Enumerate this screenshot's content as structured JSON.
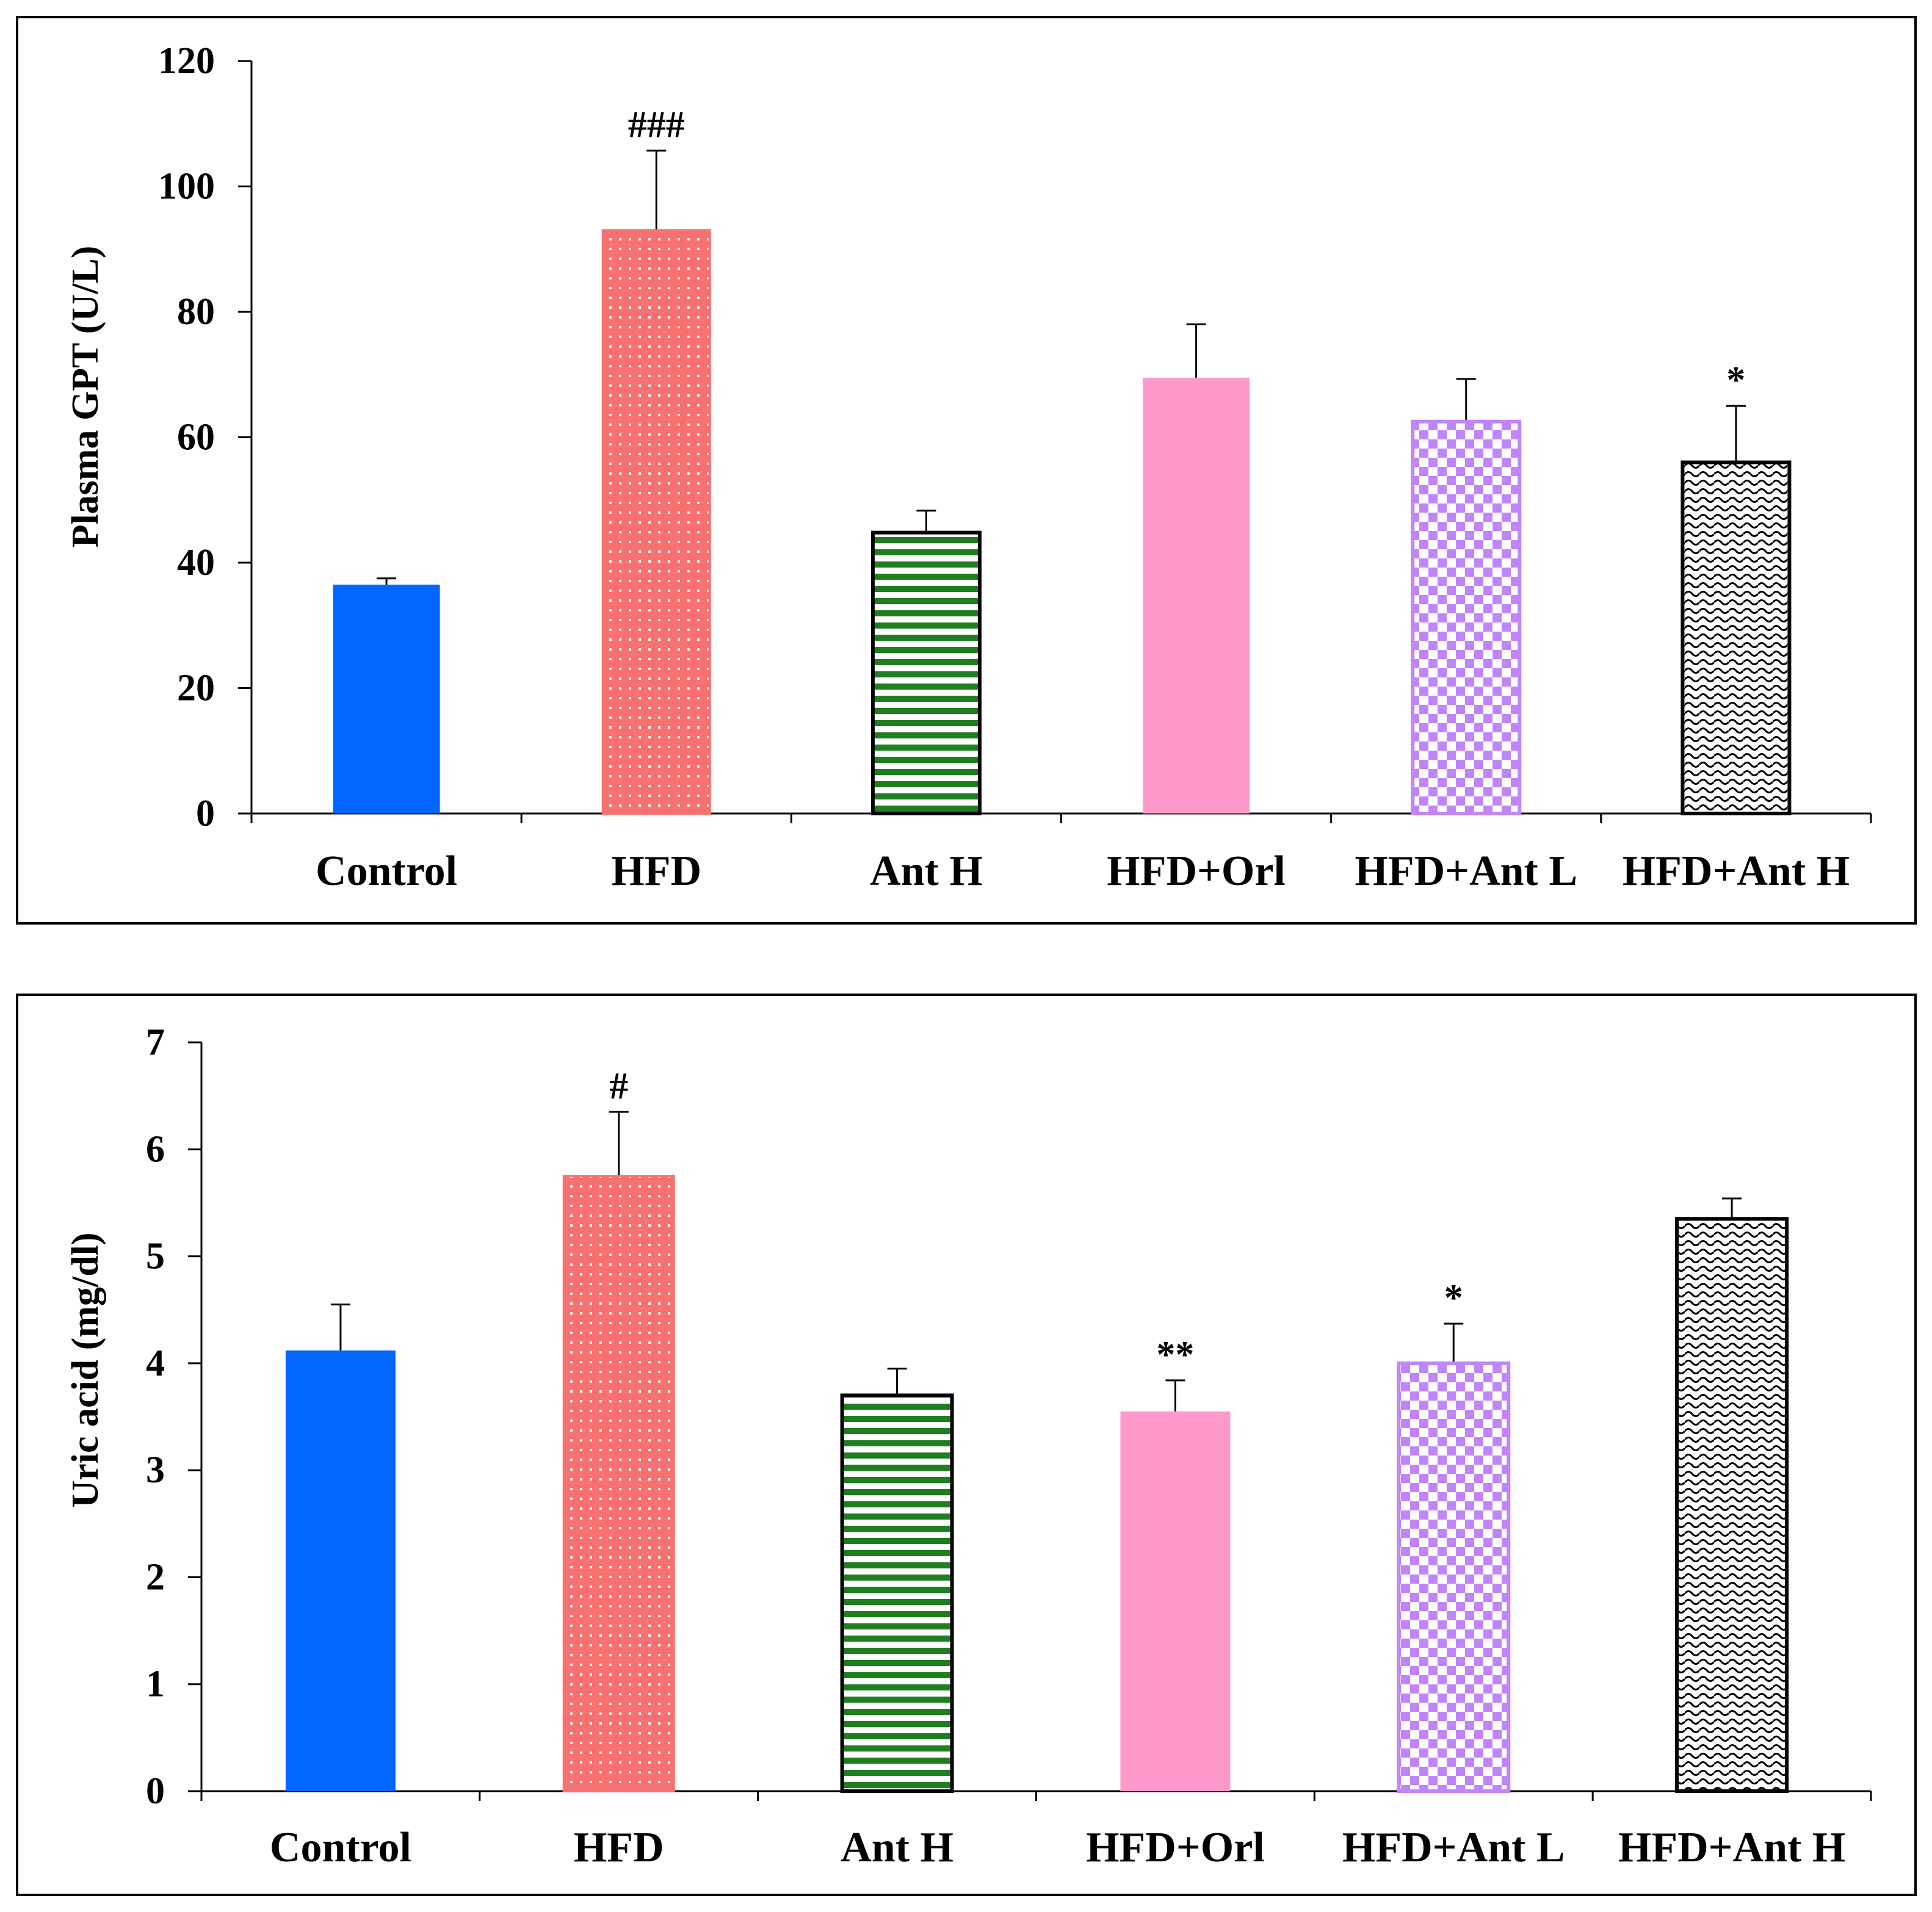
{
  "chart_data": [
    {
      "type": "bar",
      "title": "",
      "xlabel": "",
      "ylabel": "Plasma GPT (U/L)",
      "ylim": [
        0,
        120
      ],
      "yticks": [
        0,
        20,
        40,
        60,
        80,
        100,
        120
      ],
      "categories": [
        "Control",
        "HFD",
        "Ant H",
        "HFD+Orl",
        "HFD+Ant L",
        "HFD+Ant H"
      ],
      "values": [
        36.5,
        93,
        44.8,
        69.5,
        62.5,
        56
      ],
      "errors": [
        1.0,
        12.7,
        3.5,
        8.5,
        6.8,
        9.0
      ],
      "annotations": [
        "",
        "###",
        "",
        "",
        "",
        "*"
      ],
      "colors": [
        "#0066ff",
        "#f87171",
        "#1f7f1f",
        "#ff99cc",
        "#c084fc",
        "#000000"
      ],
      "patterns": [
        "solid",
        "dots",
        "hstripes",
        "solid",
        "checker",
        "waves"
      ]
    },
    {
      "type": "bar",
      "title": "",
      "xlabel": "",
      "ylabel": "Uric acid (mg/dl)",
      "ylim": [
        0,
        7
      ],
      "yticks": [
        0,
        1,
        2,
        3,
        4,
        5,
        6,
        7
      ],
      "categories": [
        "Control",
        "HFD",
        "Ant H",
        "HFD+Orl",
        "HFD+Ant L",
        "HFD+Ant H"
      ],
      "values": [
        4.12,
        5.75,
        3.7,
        3.55,
        4.0,
        5.35
      ],
      "errors": [
        0.43,
        0.6,
        0.25,
        0.29,
        0.37,
        0.19
      ],
      "annotations": [
        "",
        "#",
        "",
        "**",
        "*",
        ""
      ],
      "colors": [
        "#0066ff",
        "#f87171",
        "#1f7f1f",
        "#ff99cc",
        "#c084fc",
        "#000000"
      ],
      "patterns": [
        "solid",
        "dots",
        "hstripes",
        "solid",
        "checker",
        "waves"
      ]
    }
  ]
}
